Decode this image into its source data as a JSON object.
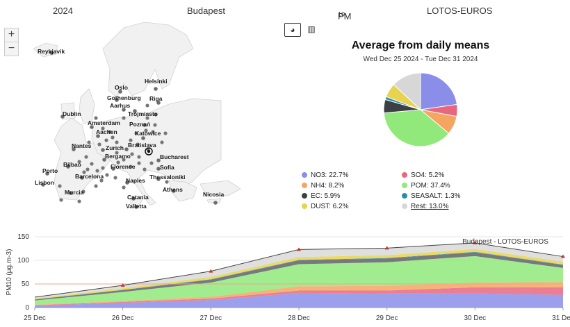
{
  "header": {
    "year": "2024",
    "city": "Budapest",
    "pollutant": "PM",
    "pollutant_sub": "10",
    "model": "LOTOS-EUROS"
  },
  "map": {
    "zoom_in": "+",
    "zoom_out": "−",
    "cities": [
      "Reykjavik",
      "Helsinki",
      "Oslo",
      "Riga",
      "Gothenburg",
      "Aarhus",
      "Trójmiasto",
      "Dublin",
      "Amsterdam",
      "Poznań",
      "Aachen",
      "Katowice",
      "Bratislava",
      "Nantes",
      "Zurich",
      "Bucharest",
      "Bergamo",
      "Bilbao",
      "Florence",
      "Sofia",
      "Porto",
      "Barcelona",
      "Thessaloniki",
      "Naples",
      "Lisbon",
      "Murcia",
      "Athens",
      "Nicosia",
      "Catania",
      "Valletta"
    ]
  },
  "view_toggle": {
    "pie_icon": "pie-chart-icon",
    "bar_icon": "bar-chart-icon"
  },
  "pie": {
    "title": "Average from daily means",
    "subtitle": "Wed Dec 25 2024 - Tue Dec 31 2024",
    "legend": [
      {
        "label": "NO3: 22.7%",
        "color": "#8b8ee9"
      },
      {
        "label": "SO4: 5.2%",
        "color": "#e8677f"
      },
      {
        "label": "NH4: 8.2%",
        "color": "#f4a661"
      },
      {
        "label": "POM: 37.4%",
        "color": "#91e97b"
      },
      {
        "label": "EC: 5.9%",
        "color": "#3c3f44"
      },
      {
        "label": "SEASALT: 1.3%",
        "color": "#2b8cad"
      },
      {
        "label": "DUST: 6.2%",
        "color": "#e6d34f"
      },
      {
        "label": "Rest: 13.0%",
        "color": "#d7d7d7"
      }
    ]
  },
  "chart_data": [
    {
      "type": "pie",
      "title": "Average from daily means",
      "subtitle": "Wed Dec 25 2024 - Tue Dec 31 2024",
      "categories": [
        "NO3",
        "POM",
        "SO4",
        "NH4",
        "EC",
        "SEASALT",
        "DUST",
        "Rest"
      ],
      "values": [
        22.7,
        37.4,
        5.2,
        8.2,
        5.9,
        1.3,
        6.2,
        13.0
      ]
    },
    {
      "type": "area",
      "title": "Budapest - LOTOS-EUROS",
      "ylabel": "PM10 (μg.m-3)",
      "x": [
        "25 Dec",
        "26 Dec",
        "27 Dec",
        "28 Dec",
        "29 Dec",
        "30 Dec",
        "31 Dec"
      ],
      "ylim": [
        0,
        150
      ],
      "yticks": [
        0,
        50,
        100,
        150
      ],
      "threshold": 50,
      "total": [
        22,
        47,
        77,
        123,
        126,
        137,
        108
      ],
      "series": [
        {
          "name": "NO3",
          "color": "#8b8ee9",
          "values": [
            4,
            10,
            16,
            31,
            30,
            30,
            27
          ]
        },
        {
          "name": "SO4",
          "color": "#e8677f",
          "values": [
            1,
            2,
            3,
            5,
            6,
            13,
            16
          ]
        },
        {
          "name": "NH4",
          "color": "#f4a661",
          "values": [
            1,
            2,
            4,
            9,
            10,
            10,
            11
          ]
        },
        {
          "name": "POM",
          "color": "#91e97b",
          "values": [
            9,
            19,
            30,
            47,
            50,
            56,
            30
          ]
        },
        {
          "name": "EC",
          "color": "#5f6166",
          "values": [
            2,
            4,
            6,
            8,
            8,
            8,
            6
          ]
        },
        {
          "name": "SEASALT",
          "color": "#2b8cad",
          "values": [
            0.5,
            0.5,
            1,
            1,
            1,
            1,
            1
          ]
        },
        {
          "name": "DUST",
          "color": "#e6d34f",
          "values": [
            1.5,
            3.5,
            5,
            6,
            6,
            6,
            6
          ]
        },
        {
          "name": "Rest",
          "color": "#d9d9d9",
          "values": [
            3,
            6,
            12,
            16,
            15,
            13,
            11
          ]
        }
      ]
    }
  ]
}
